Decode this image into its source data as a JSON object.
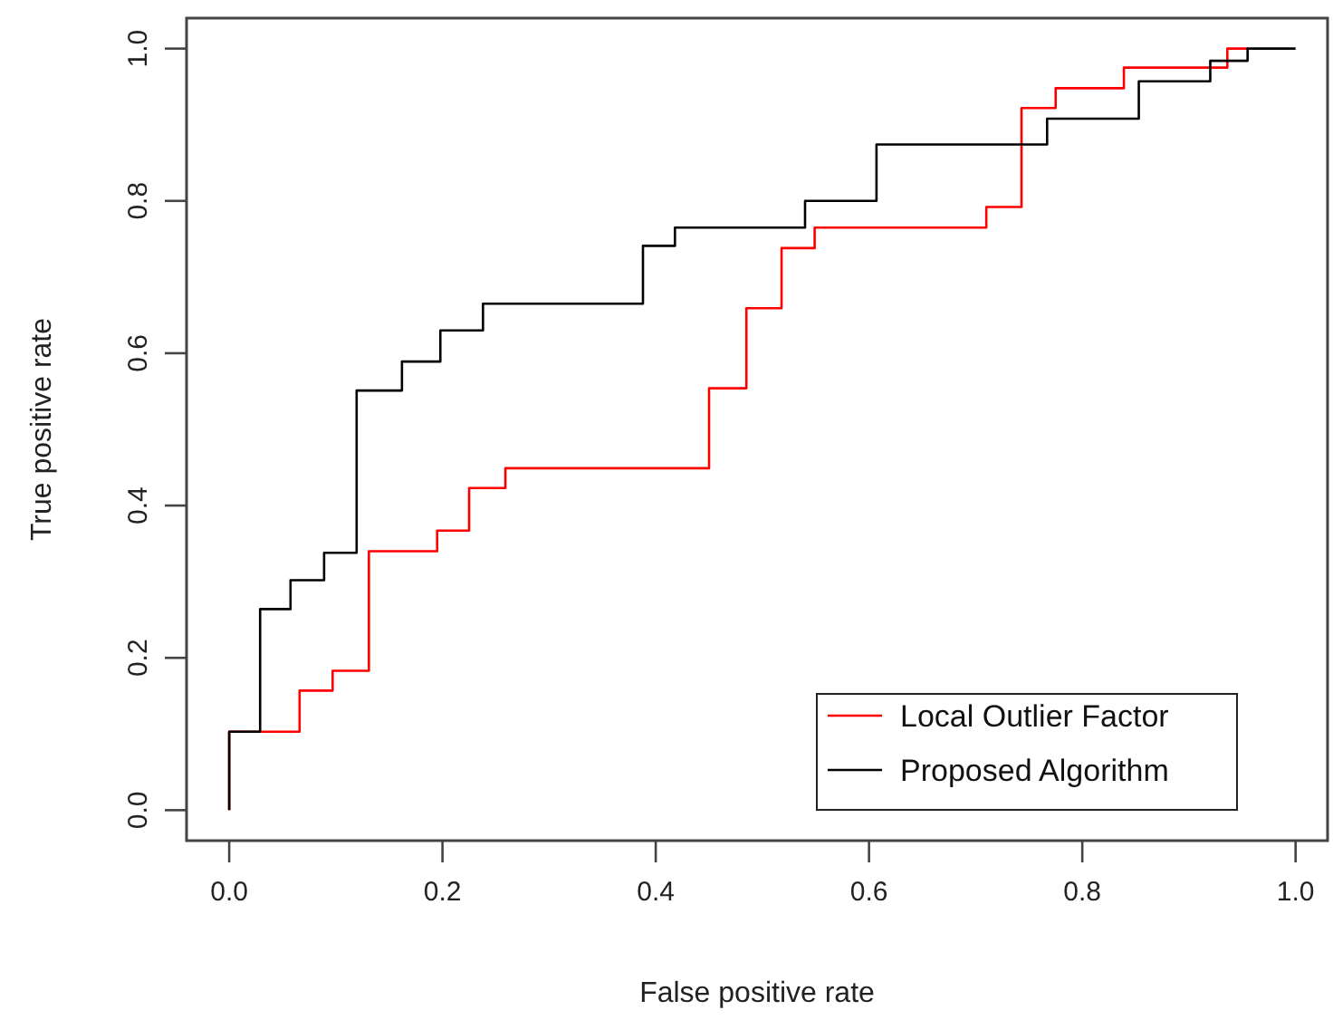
{
  "chart_data": {
    "type": "step",
    "xlabel": "False positive rate",
    "ylabel": "True positive rate",
    "xlim": [
      -0.04,
      1.03
    ],
    "ylim": [
      -0.04,
      1.04
    ],
    "xticks": [
      {
        "value": 0,
        "label": "0.0"
      },
      {
        "value": 0.2,
        "label": "0.2"
      },
      {
        "value": 0.4,
        "label": "0.4"
      },
      {
        "value": 0.6,
        "label": "0.6"
      },
      {
        "value": 0.8,
        "label": "0.8"
      },
      {
        "value": 1,
        "label": "1.0"
      }
    ],
    "yticks": [
      {
        "value": 0,
        "label": "0.0"
      },
      {
        "value": 0.2,
        "label": "0.2"
      },
      {
        "value": 0.4,
        "label": "0.4"
      },
      {
        "value": 0.6,
        "label": "0.6"
      },
      {
        "value": 0.8,
        "label": "0.8"
      },
      {
        "value": 1,
        "label": "1.0"
      }
    ],
    "grid": false,
    "legend": "bottom right",
    "line_style": "solid",
    "marker": "none",
    "series": [
      {
        "name": "Local Outlier Factor",
        "color": "#ff0000",
        "x": [
          0,
          0,
          0.066,
          0.097,
          0.131,
          0.195,
          0.225,
          0.259,
          0.45,
          0.485,
          0.518,
          0.549,
          0.71,
          0.743,
          0.775,
          0.839,
          0.936,
          0.955
        ],
        "values": [
          0,
          0.103,
          0.157,
          0.183,
          0.34,
          0.367,
          0.423,
          0.449,
          0.554,
          0.659,
          0.738,
          0.765,
          0.792,
          0.922,
          0.948,
          0.975,
          1,
          1
        ]
      },
      {
        "name": "Proposed Algorithm",
        "color": "#000000",
        "x": [
          0,
          0,
          0.029,
          0.0575,
          0.089,
          0.1195,
          0.162,
          0.198,
          0.238,
          0.388,
          0.418,
          0.54,
          0.607,
          0.767,
          0.853,
          0.92,
          0.955,
          1
        ],
        "values": [
          0,
          0.103,
          0.264,
          0.302,
          0.338,
          0.551,
          0.589,
          0.63,
          0.665,
          0.741,
          0.765,
          0.8,
          0.874,
          0.908,
          0.957,
          0.984,
          1,
          1
        ]
      }
    ]
  }
}
